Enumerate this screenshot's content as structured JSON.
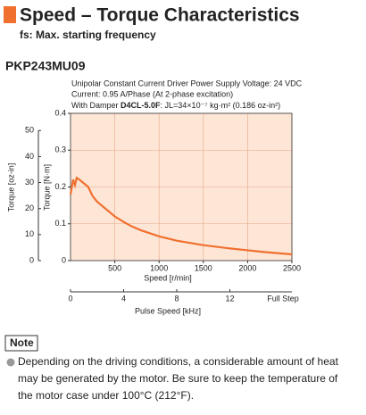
{
  "header": {
    "title": "Speed – Torque Characteristics",
    "subtitle": "fs: Max. starting frequency"
  },
  "model": "PKP243MU09",
  "conditions": {
    "line1": "Unipolar Constant Current Driver  Power Supply Voltage: 24 VDC",
    "line2": "Current: 0.95 A/Phase (At 2-phase excitation)",
    "line3_prefix": "With Damper ",
    "line3_damper": "D4CL-5.0F",
    "line3_suffix": ": JL=34×10⁻⁷ kg·m² (0.186 oz-in²)"
  },
  "note": {
    "label": "Note",
    "lines": [
      "Depending on the driving conditions, a considerable amount of heat",
      "may be generated by the motor. Be sure to keep the temperature of",
      "the motor case under 100°C (212°F)."
    ]
  },
  "chart_data": {
    "type": "line",
    "color": "#f07030",
    "plot_color": "#fde6d6",
    "grid": true,
    "x": [
      0,
      30,
      50,
      70,
      100,
      150,
      200,
      250,
      300,
      400,
      500,
      600,
      700,
      800,
      1000,
      1200,
      1500,
      1800,
      2000,
      2200,
      2500
    ],
    "values": [
      0.18,
      0.22,
      0.205,
      0.225,
      0.22,
      0.21,
      0.2,
      0.175,
      0.16,
      0.14,
      0.12,
      0.105,
      0.092,
      0.082,
      0.066,
      0.054,
      0.042,
      0.033,
      0.028,
      0.023,
      0.017
    ],
    "xlabel": "Speed [r/min]",
    "ylabel": "Torque [N·m]",
    "y2label": "Torque [oz-in]",
    "x2label": "Pulse Speed [kHz]",
    "xlim": [
      0,
      2500
    ],
    "xticks": [
      500,
      1000,
      1500,
      2000,
      2500
    ],
    "ylim": [
      0,
      0.4
    ],
    "yticks": [
      0,
      0.1,
      0.2,
      0.3,
      0.4
    ],
    "y2lim": [
      0,
      56.6
    ],
    "y2ticks": [
      0,
      10,
      20,
      30,
      40,
      50
    ],
    "x2lim": [
      0,
      16.67
    ],
    "x2ticks": [
      0,
      4,
      8,
      12
    ],
    "x2_end_label": "Full Step"
  }
}
